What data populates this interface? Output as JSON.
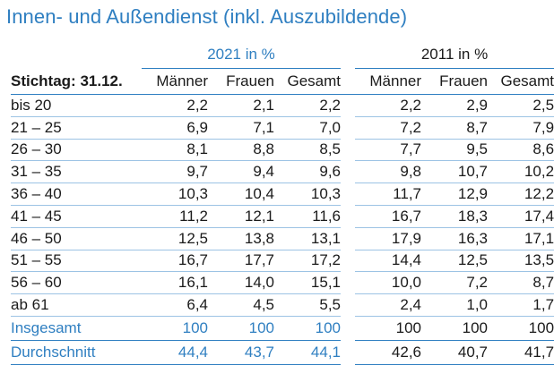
{
  "title": "Innen- und Außendienst (inkl. Auszubildende)",
  "groups": {
    "y2021": "2021 in %",
    "y2011": "2011 in %"
  },
  "header": {
    "label": "Stichtag: 31.12.",
    "cols_2021": [
      "Männer",
      "Frauen",
      "Gesamt"
    ],
    "cols_2011": [
      "Männer",
      "Frauen",
      "Gesamt"
    ]
  },
  "rows": [
    {
      "label": "bis 20",
      "v2021": [
        "2,2",
        "2,1",
        "2,2"
      ],
      "v2011": [
        "2,2",
        "2,9",
        "2,5"
      ]
    },
    {
      "label": "21 – 25",
      "v2021": [
        "6,9",
        "7,1",
        "7,0"
      ],
      "v2011": [
        "7,2",
        "8,7",
        "7,9"
      ]
    },
    {
      "label": "26 – 30",
      "v2021": [
        "8,1",
        "8,8",
        "8,5"
      ],
      "v2011": [
        "7,7",
        "9,5",
        "8,6"
      ]
    },
    {
      "label": "31 – 35",
      "v2021": [
        "9,7",
        "9,4",
        "9,6"
      ],
      "v2011": [
        "9,8",
        "10,7",
        "10,2"
      ]
    },
    {
      "label": "36 – 40",
      "v2021": [
        "10,3",
        "10,4",
        "10,3"
      ],
      "v2011": [
        "11,7",
        "12,9",
        "12,2"
      ]
    },
    {
      "label": "41 – 45",
      "v2021": [
        "11,2",
        "12,1",
        "11,6"
      ],
      "v2011": [
        "16,7",
        "18,3",
        "17,4"
      ]
    },
    {
      "label": "46 – 50",
      "v2021": [
        "12,5",
        "13,8",
        "13,1"
      ],
      "v2011": [
        "17,9",
        "16,3",
        "17,1"
      ]
    },
    {
      "label": "51 – 55",
      "v2021": [
        "16,7",
        "17,7",
        "17,2"
      ],
      "v2011": [
        "14,4",
        "12,5",
        "13,5"
      ]
    },
    {
      "label": "56 – 60",
      "v2021": [
        "16,1",
        "14,0",
        "15,1"
      ],
      "v2011": [
        "10,0",
        "7,2",
        "8,7"
      ]
    },
    {
      "label": "ab 61",
      "v2021": [
        "6,4",
        "4,5",
        "5,5"
      ],
      "v2011": [
        "2,4",
        "1,0",
        "1,7"
      ]
    }
  ],
  "totals": [
    {
      "label": "Insgesamt",
      "v2021": [
        "100",
        "100",
        "100"
      ],
      "v2011": [
        "100",
        "100",
        "100"
      ]
    },
    {
      "label": "Durchschnitt",
      "v2021": [
        "44,4",
        "43,7",
        "44,1"
      ],
      "v2011": [
        "42,6",
        "40,7",
        "41,7"
      ]
    }
  ],
  "colors": {
    "accent": "#2f7fc1",
    "rule_light": "#9cc3e4",
    "text": "#1a1a1a"
  }
}
